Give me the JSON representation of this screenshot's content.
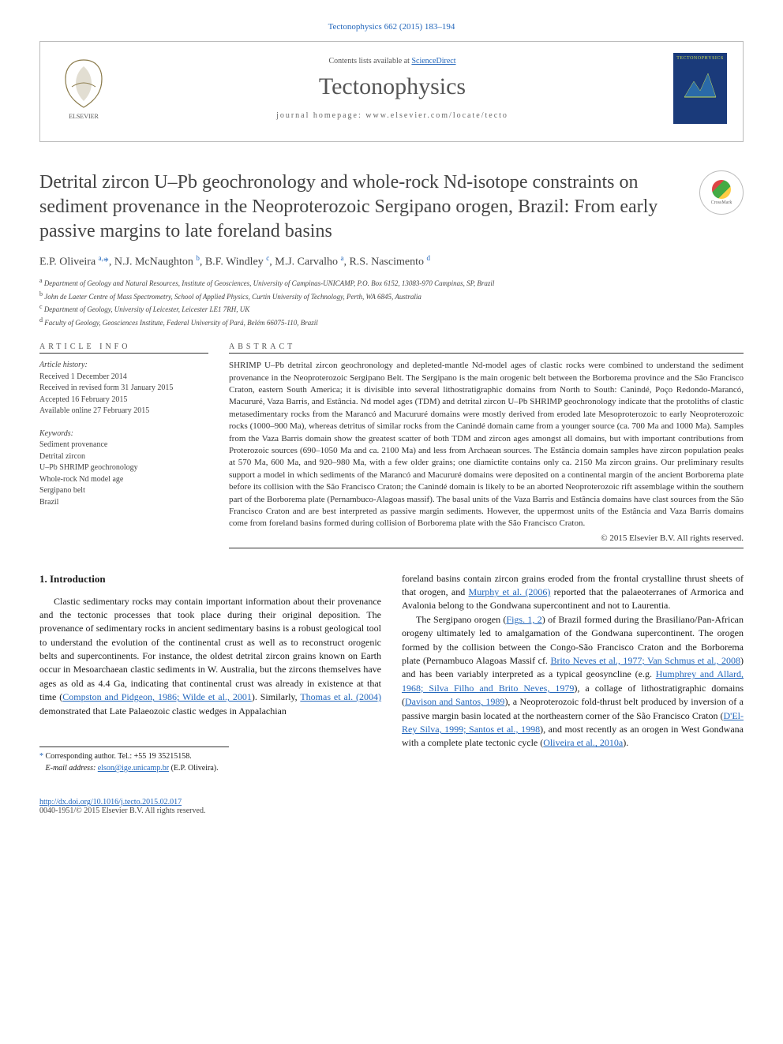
{
  "citation": "Tectonophysics 662 (2015) 183–194",
  "header": {
    "lists_text": "Contents lists available at ",
    "lists_link": "ScienceDirect",
    "journal": "Tectonophysics",
    "homepage_label": "journal homepage: ",
    "homepage_url": "www.elsevier.com/locate/tecto",
    "cover_title": "TECTONOPHYSICS"
  },
  "article": {
    "title": "Detrital zircon U–Pb geochronology and whole-rock Nd-isotope constraints on sediment provenance in the Neoproterozoic Sergipano orogen, Brazil: From early passive margins to late foreland basins",
    "crossmark": "CrossMark",
    "authors_html": "E.P. Oliveira <sup>a,</sup><span class='star'>*</span>, N.J. McNaughton <sup>b</sup>, B.F. Windley <sup>c</sup>, M.J. Carvalho <sup>a</sup>, R.S. Nascimento <sup>d</sup>",
    "affiliations": [
      {
        "sup": "a",
        "text": "Department of Geology and Natural Resources, Institute of Geosciences, University of Campinas-UNICAMP, P.O. Box 6152, 13083-970 Campinas, SP, Brazil"
      },
      {
        "sup": "b",
        "text": "John de Laeter Centre of Mass Spectrometry, School of Applied Physics, Curtin University of Technology, Perth, WA 6845, Australia"
      },
      {
        "sup": "c",
        "text": "Department of Geology, University of Leicester, Leicester LE1 7RH, UK"
      },
      {
        "sup": "d",
        "text": "Faculty of Geology, Geosciences Institute, Federal University of Pará, Belém 66075-110, Brazil"
      }
    ]
  },
  "article_info": {
    "heading": "ARTICLE INFO",
    "history_label": "Article history:",
    "history": [
      "Received 1 December 2014",
      "Received in revised form 31 January 2015",
      "Accepted 16 February 2015",
      "Available online 27 February 2015"
    ],
    "keywords_label": "Keywords:",
    "keywords": [
      "Sediment provenance",
      "Detrital zircon",
      "U–Pb SHRIMP geochronology",
      "Whole-rock Nd model age",
      "Sergipano belt",
      "Brazil"
    ]
  },
  "abstract": {
    "heading": "ABSTRACT",
    "text": "SHRIMP U–Pb detrital zircon geochronology and depleted-mantle Nd-model ages of clastic rocks were combined to understand the sediment provenance in the Neoproterozoic Sergipano Belt. The Sergipano is the main orogenic belt between the Borborema province and the São Francisco Craton, eastern South America; it is divisible into several lithostratigraphic domains from North to South: Canindé, Poço Redondo-Marancó, Macururé, Vaza Barris, and Estância. Nd model ages (TDM) and detrital zircon U–Pb SHRIMP geochronology indicate that the protoliths of clastic metasedimentary rocks from the Marancó and Macururé domains were mostly derived from eroded late Mesoproterozoic to early Neoproterozoic rocks (1000–900 Ma), whereas detritus of similar rocks from the Canindé domain came from a younger source (ca. 700 Ma and 1000 Ma). Samples from the Vaza Barris domain show the greatest scatter of both TDM and zircon ages amongst all domains, but with important contributions from Proterozoic sources (690–1050 Ma and ca. 2100 Ma) and less from Archaean sources. The Estância domain samples have zircon population peaks at 570 Ma, 600 Ma, and 920–980 Ma, with a few older grains; one diamictite contains only ca. 2150 Ma zircon grains. Our preliminary results support a model in which sediments of the Marancó and Macururé domains were deposited on a continental margin of the ancient Borborema plate before its collision with the São Francisco Craton; the Canindé domain is likely to be an aborted Neoproterozoic rift assemblage within the southern part of the Borborema plate (Pernambuco-Alagoas massif). The basal units of the Vaza Barris and Estância domains have clast sources from the São Francisco Craton and are best interpreted as passive margin sediments. However, the uppermost units of the Estância and Vaza Barris domains come from foreland basins formed during collision of Borborema plate with the São Francisco Craton.",
    "copyright": "© 2015 Elsevier B.V. All rights reserved."
  },
  "body": {
    "section_heading": "1. Introduction",
    "col1_p1": "Clastic sedimentary rocks may contain important information about their provenance and the tectonic processes that took place during their original deposition. The provenance of sedimentary rocks in ancient sedimentary basins is a robust geological tool to understand the evolution of the continental crust as well as to reconstruct orogenic belts and supercontinents. For instance, the oldest detrital zircon grains known on Earth occur in Mesoarchaean clastic sediments in W. Australia, but the zircons themselves have ages as old as 4.4 Ga, indicating that continental crust was already in existence at that time (",
    "col1_link1": "Compston and Pidgeon, 1986; Wilde et al., 2001",
    "col1_p1b": "). Similarly, ",
    "col1_link2": "Thomas et al. (2004)",
    "col1_p1c": " demonstrated that Late Palaeozoic clastic wedges in Appalachian",
    "col2_p1": "foreland basins contain zircon grains eroded from the frontal crystalline thrust sheets of that orogen, and ",
    "col2_link1": "Murphy et al. (2006)",
    "col2_p1b": " reported that the palaeoterranes of Armorica and Avalonia belong to the Gondwana supercontinent and not to Laurentia.",
    "col2_p2a": "The Sergipano orogen (",
    "col2_link2": "Figs. 1, 2",
    "col2_p2b": ") of Brazil formed during the Brasiliano/Pan-African orogeny ultimately led to amalgamation of the Gondwana supercontinent. The orogen formed by the collision between the Congo-São Francisco Craton and the Borborema plate (Pernambuco Alagoas Massif cf. ",
    "col2_link3": "Brito Neves et al., 1977; Van Schmus et al., 2008",
    "col2_p2c": ") and has been variably interpreted as a typical geosyncline (e.g. ",
    "col2_link4": "Humphrey and Allard, 1968; Silva Filho and Brito Neves, 1979",
    "col2_p2d": "), a collage of lithostratigraphic domains (",
    "col2_link5": "Davison and Santos, 1989",
    "col2_p2e": "), a Neoproterozoic fold-thrust belt produced by inversion of a passive margin basin located at the northeastern corner of the São Francisco Craton (",
    "col2_link6": "D'El-Rey Silva, 1999; Santos et al., 1998",
    "col2_p2f": "), and most recently as an orogen in West Gondwana with a complete plate tectonic cycle (",
    "col2_link7": "Oliveira et al., 2010a",
    "col2_p2g": ")."
  },
  "footnotes": {
    "corr_label": "Corresponding author. Tel.: +55 19 35215158.",
    "email_label": "E-mail address:",
    "email": "elson@ige.unicamp.br",
    "email_author": "(E.P. Oliveira)."
  },
  "footer": {
    "doi": "http://dx.doi.org/10.1016/j.tecto.2015.02.017",
    "issn_copyright": "0040-1951/© 2015 Elsevier B.V. All rights reserved."
  },
  "colors": {
    "link": "#2266bb",
    "text": "#333333",
    "cover_bg": "#1a3a7a",
    "cover_accent": "#c9dd55"
  }
}
